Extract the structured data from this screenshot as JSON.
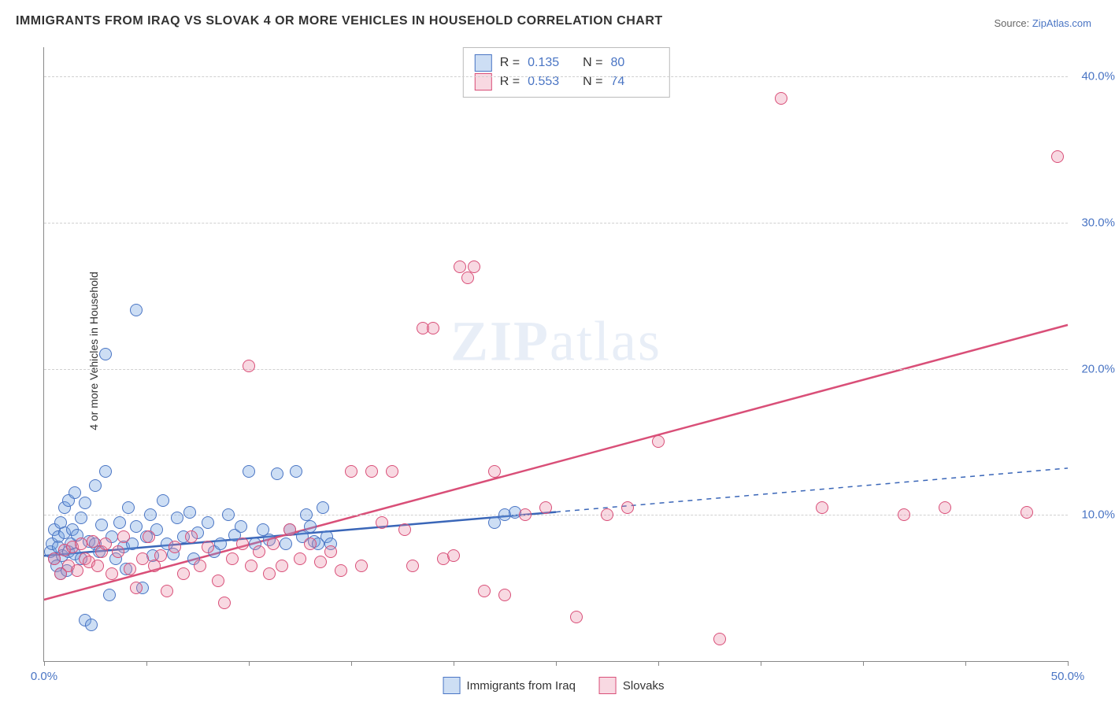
{
  "title": "IMMIGRANTS FROM IRAQ VS SLOVAK 4 OR MORE VEHICLES IN HOUSEHOLD CORRELATION CHART",
  "source_prefix": "Source: ",
  "source_name": "ZipAtlas.com",
  "ylabel": "4 or more Vehicles in Household",
  "watermark": "ZIPatlas",
  "chart": {
    "type": "scatter",
    "xlim": [
      0,
      50
    ],
    "ylim": [
      0,
      42
    ],
    "x_tick_step": 5,
    "y_tick_step": 10,
    "x_tick_labels": {
      "0": "0.0%",
      "50": "50.0%"
    },
    "y_tick_labels": {
      "10": "10.0%",
      "20": "20.0%",
      "30": "30.0%",
      "40": "40.0%"
    },
    "grid_color": "#d0d0d0",
    "axis_color": "#888888",
    "background_color": "#ffffff"
  },
  "stats": {
    "r_label": "R  =",
    "n_label": "N  =",
    "series": [
      {
        "key": "iraq",
        "r": "0.135",
        "n": "80"
      },
      {
        "key": "slovak",
        "r": "0.553",
        "n": "74"
      }
    ]
  },
  "legend": {
    "items": [
      {
        "key": "iraq",
        "label": "Immigrants from Iraq"
      },
      {
        "key": "slovak",
        "label": "Slovaks"
      }
    ]
  },
  "series": {
    "iraq": {
      "fill_color": "rgba(112,161,224,0.35)",
      "stroke_color": "#4a75c4",
      "marker_size": 14,
      "trend": {
        "x1": 0,
        "y1": 7.2,
        "x2": 25,
        "y2": 10.2,
        "dash_to_x": 50,
        "dash_to_y": 13.2,
        "color": "#3a66b8",
        "width": 2.5
      },
      "points": [
        [
          0.3,
          7.5
        ],
        [
          0.4,
          8.0
        ],
        [
          0.5,
          7.0
        ],
        [
          0.5,
          9.0
        ],
        [
          0.6,
          6.5
        ],
        [
          0.7,
          8.5
        ],
        [
          0.7,
          7.8
        ],
        [
          0.8,
          9.5
        ],
        [
          0.8,
          6.0
        ],
        [
          0.9,
          7.2
        ],
        [
          1.0,
          10.5
        ],
        [
          1.0,
          8.8
        ],
        [
          1.1,
          6.2
        ],
        [
          1.2,
          7.5
        ],
        [
          1.2,
          11.0
        ],
        [
          1.3,
          8.0
        ],
        [
          1.4,
          9.0
        ],
        [
          1.5,
          11.5
        ],
        [
          1.5,
          7.3
        ],
        [
          1.6,
          8.6
        ],
        [
          1.8,
          9.8
        ],
        [
          1.8,
          7.0
        ],
        [
          2.0,
          10.8
        ],
        [
          2.0,
          2.8
        ],
        [
          2.2,
          8.2
        ],
        [
          2.3,
          2.5
        ],
        [
          2.5,
          12.0
        ],
        [
          2.5,
          8.0
        ],
        [
          2.7,
          7.5
        ],
        [
          2.8,
          9.3
        ],
        [
          3.0,
          13.0
        ],
        [
          3.0,
          21.0
        ],
        [
          3.2,
          4.5
        ],
        [
          3.3,
          8.5
        ],
        [
          3.5,
          7.0
        ],
        [
          3.7,
          9.5
        ],
        [
          3.9,
          7.8
        ],
        [
          4.0,
          6.3
        ],
        [
          4.1,
          10.5
        ],
        [
          4.3,
          8.0
        ],
        [
          4.5,
          9.2
        ],
        [
          4.5,
          24.0
        ],
        [
          4.8,
          5.0
        ],
        [
          5.0,
          8.5
        ],
        [
          5.2,
          10.0
        ],
        [
          5.3,
          7.2
        ],
        [
          5.5,
          9.0
        ],
        [
          5.8,
          11.0
        ],
        [
          6.0,
          8.0
        ],
        [
          6.3,
          7.3
        ],
        [
          6.5,
          9.8
        ],
        [
          6.8,
          8.5
        ],
        [
          7.1,
          10.2
        ],
        [
          7.3,
          7.0
        ],
        [
          7.5,
          8.8
        ],
        [
          8.0,
          9.5
        ],
        [
          8.3,
          7.5
        ],
        [
          8.6,
          8.0
        ],
        [
          9.0,
          10.0
        ],
        [
          9.3,
          8.6
        ],
        [
          9.6,
          9.2
        ],
        [
          10.0,
          13.0
        ],
        [
          10.3,
          8.0
        ],
        [
          10.7,
          9.0
        ],
        [
          11.0,
          8.3
        ],
        [
          11.4,
          12.8
        ],
        [
          11.8,
          8.0
        ],
        [
          12.0,
          9.0
        ],
        [
          12.3,
          13.0
        ],
        [
          12.6,
          8.5
        ],
        [
          12.8,
          10.0
        ],
        [
          13.0,
          9.2
        ],
        [
          13.2,
          8.2
        ],
        [
          13.4,
          8.0
        ],
        [
          13.6,
          10.5
        ],
        [
          13.8,
          8.5
        ],
        [
          14.0,
          8.0
        ],
        [
          22.0,
          9.5
        ],
        [
          22.5,
          10.0
        ],
        [
          23.0,
          10.2
        ]
      ]
    },
    "slovak": {
      "fill_color": "rgba(231,130,160,0.30)",
      "stroke_color": "#d94f78",
      "marker_size": 14,
      "trend": {
        "x1": 0,
        "y1": 4.2,
        "x2": 50,
        "y2": 23.0,
        "color": "#d94f78",
        "width": 2.5
      },
      "points": [
        [
          0.5,
          7.0
        ],
        [
          0.8,
          6.0
        ],
        [
          1.0,
          7.6
        ],
        [
          1.2,
          6.5
        ],
        [
          1.4,
          7.8
        ],
        [
          1.6,
          6.2
        ],
        [
          1.8,
          8.0
        ],
        [
          2.0,
          7.0
        ],
        [
          2.2,
          6.8
        ],
        [
          2.4,
          8.2
        ],
        [
          2.6,
          6.5
        ],
        [
          2.8,
          7.5
        ],
        [
          3.0,
          8.0
        ],
        [
          3.3,
          6.0
        ],
        [
          3.6,
          7.5
        ],
        [
          3.9,
          8.5
        ],
        [
          4.2,
          6.3
        ],
        [
          4.5,
          5.0
        ],
        [
          4.8,
          7.0
        ],
        [
          5.1,
          8.5
        ],
        [
          5.4,
          6.5
        ],
        [
          5.7,
          7.2
        ],
        [
          6.0,
          4.8
        ],
        [
          6.4,
          7.8
        ],
        [
          6.8,
          6.0
        ],
        [
          7.2,
          8.5
        ],
        [
          7.6,
          6.5
        ],
        [
          8.0,
          7.8
        ],
        [
          8.5,
          5.5
        ],
        [
          8.8,
          4.0
        ],
        [
          9.2,
          7.0
        ],
        [
          9.7,
          8.0
        ],
        [
          10.0,
          20.2
        ],
        [
          10.1,
          6.5
        ],
        [
          10.5,
          7.5
        ],
        [
          11.0,
          6.0
        ],
        [
          11.2,
          8.0
        ],
        [
          11.6,
          6.5
        ],
        [
          12.0,
          9.0
        ],
        [
          12.5,
          7.0
        ],
        [
          13.0,
          8.0
        ],
        [
          13.5,
          6.8
        ],
        [
          14.0,
          7.5
        ],
        [
          14.5,
          6.2
        ],
        [
          15.0,
          13.0
        ],
        [
          15.5,
          6.5
        ],
        [
          16.0,
          13.0
        ],
        [
          16.5,
          9.5
        ],
        [
          17.0,
          13.0
        ],
        [
          17.6,
          9.0
        ],
        [
          18.0,
          6.5
        ],
        [
          18.5,
          22.8
        ],
        [
          19.0,
          22.8
        ],
        [
          19.5,
          7.0
        ],
        [
          20.0,
          7.2
        ],
        [
          20.3,
          27.0
        ],
        [
          20.7,
          26.2
        ],
        [
          21.0,
          27.0
        ],
        [
          21.5,
          4.8
        ],
        [
          22.0,
          13.0
        ],
        [
          22.5,
          4.5
        ],
        [
          23.5,
          10.0
        ],
        [
          24.5,
          10.5
        ],
        [
          26.0,
          3.0
        ],
        [
          27.5,
          10.0
        ],
        [
          28.5,
          10.5
        ],
        [
          30.0,
          15.0
        ],
        [
          33.0,
          1.5
        ],
        [
          36.0,
          38.5
        ],
        [
          38.0,
          10.5
        ],
        [
          44.0,
          10.5
        ],
        [
          48.0,
          10.2
        ],
        [
          49.5,
          34.5
        ],
        [
          42.0,
          10.0
        ]
      ]
    }
  }
}
